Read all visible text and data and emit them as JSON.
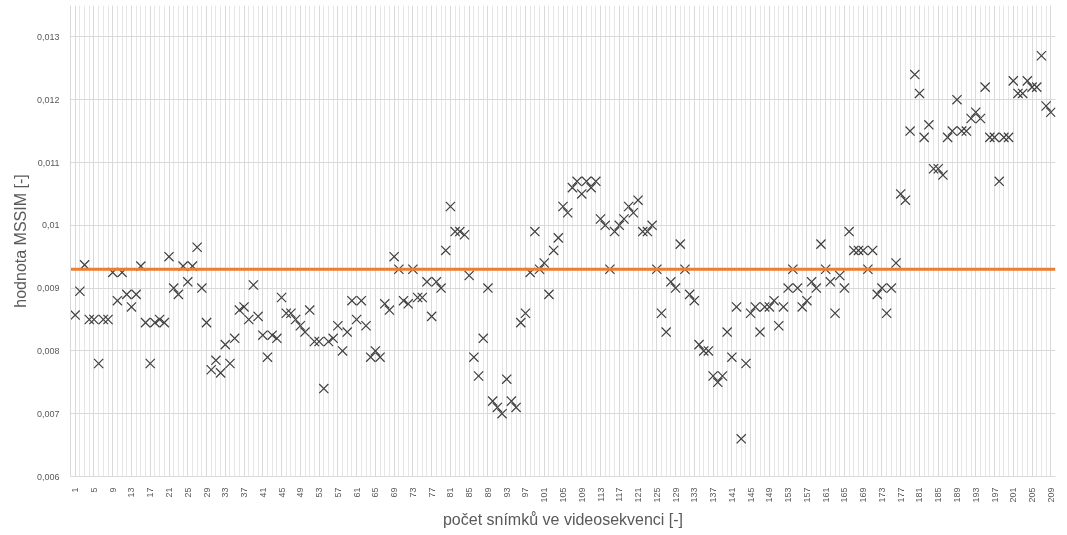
{
  "chart_data": {
    "type": "scatter",
    "xlabel": "počet snímků ve videosekvenci [-]",
    "ylabel": "hodnota MSSIM [-]",
    "x": [
      1,
      2,
      3,
      4,
      5,
      6,
      7,
      8,
      9,
      10,
      11,
      12,
      13,
      14,
      15,
      16,
      17,
      18,
      19,
      20,
      21,
      22,
      23,
      24,
      25,
      26,
      27,
      28,
      29,
      30,
      31,
      32,
      33,
      34,
      35,
      36,
      37,
      38,
      39,
      40,
      41,
      42,
      43,
      44,
      45,
      46,
      47,
      48,
      49,
      50,
      51,
      52,
      53,
      54,
      55,
      56,
      57,
      58,
      59,
      60,
      61,
      62,
      63,
      64,
      65,
      66,
      67,
      68,
      69,
      70,
      71,
      72,
      73,
      74,
      75,
      76,
      77,
      78,
      79,
      80,
      81,
      82,
      83,
      84,
      85,
      86,
      87,
      88,
      89,
      90,
      91,
      92,
      93,
      94,
      95,
      96,
      97,
      98,
      99,
      100,
      101,
      102,
      103,
      104,
      105,
      106,
      107,
      108,
      109,
      110,
      111,
      112,
      113,
      114,
      115,
      116,
      117,
      118,
      119,
      120,
      121,
      122,
      123,
      124,
      125,
      126,
      127,
      128,
      129,
      130,
      131,
      132,
      133,
      134,
      135,
      136,
      137,
      138,
      139,
      140,
      141,
      142,
      143,
      144,
      145,
      146,
      147,
      148,
      149,
      150,
      151,
      152,
      153,
      154,
      155,
      156,
      157,
      158,
      159,
      160,
      161,
      162,
      163,
      164,
      165,
      166,
      167,
      168,
      169,
      170,
      171,
      172,
      173,
      174,
      175,
      176,
      177,
      178,
      179,
      180,
      181,
      182,
      183,
      184,
      185,
      186,
      187,
      188,
      189,
      190,
      191,
      192,
      193,
      194,
      195,
      196,
      197,
      198,
      199,
      200,
      201,
      202,
      203,
      204,
      205,
      206,
      207,
      208,
      209
    ],
    "series": [
      {
        "color": "#404040",
        "values": [
          0.00857,
          0.00895,
          0.00937,
          0.0085,
          0.0085,
          0.0078,
          0.0085,
          0.0085,
          0.00925,
          0.0088,
          0.00925,
          0.0089,
          0.0087,
          0.0089,
          0.00935,
          0.00845,
          0.0078,
          0.00845,
          0.0085,
          0.00845,
          0.0095,
          0.009,
          0.0089,
          0.00935,
          0.0091,
          0.00935,
          0.00965,
          0.009,
          0.00845,
          0.0077,
          0.00785,
          0.00765,
          0.0081,
          0.0078,
          0.0082,
          0.00865,
          0.0087,
          0.0085,
          0.00905,
          0.00855,
          0.00825,
          0.0079,
          0.00825,
          0.0082,
          0.00885,
          0.0086,
          0.0086,
          0.0085,
          0.0084,
          0.0083,
          0.00865,
          0.00815,
          0.00815,
          0.0074,
          0.00815,
          0.0082,
          0.0084,
          0.008,
          0.0083,
          0.0088,
          0.0085,
          0.0088,
          0.0084,
          0.0079,
          0.008,
          0.0079,
          0.00875,
          0.00865,
          0.0095,
          0.0093,
          0.0088,
          0.00875,
          0.0093,
          0.00885,
          0.00885,
          0.0091,
          0.00855,
          0.0091,
          0.009,
          0.0096,
          0.0103,
          0.0099,
          0.0099,
          0.00985,
          0.0092,
          0.0079,
          0.0076,
          0.0082,
          0.009,
          0.0072,
          0.0071,
          0.007,
          0.00755,
          0.0072,
          0.0071,
          0.00845,
          0.0086,
          0.00925,
          0.0099,
          0.0093,
          0.0094,
          0.0089,
          0.0096,
          0.0098,
          0.0103,
          0.0102,
          0.0106,
          0.0107,
          0.0105,
          0.0107,
          0.0106,
          0.0107,
          0.0101,
          0.01,
          0.0093,
          0.0099,
          0.01,
          0.0101,
          0.0103,
          0.0102,
          0.0104,
          0.0099,
          0.0099,
          0.01,
          0.0093,
          0.0086,
          0.0083,
          0.0091,
          0.009,
          0.0097,
          0.0093,
          0.0089,
          0.0088,
          0.0081,
          0.008,
          0.008,
          0.0076,
          0.0075,
          0.0076,
          0.0083,
          0.0079,
          0.0087,
          0.0066,
          0.0078,
          0.0086,
          0.0087,
          0.0083,
          0.0087,
          0.0087,
          0.0088,
          0.0084,
          0.0087,
          0.009,
          0.0093,
          0.009,
          0.0087,
          0.0088,
          0.0091,
          0.009,
          0.0097,
          0.0093,
          0.0091,
          0.0086,
          0.0092,
          0.009,
          0.0099,
          0.0096,
          0.0096,
          0.0096,
          0.0093,
          0.0096,
          0.0089,
          0.009,
          0.0086,
          0.009,
          0.0094,
          0.0105,
          0.0104,
          0.0115,
          0.0124,
          0.0121,
          0.0114,
          0.0116,
          0.0109,
          0.0109,
          0.0108,
          0.0114,
          0.0115,
          0.012,
          0.0115,
          0.0115,
          0.0117,
          0.0118,
          0.0117,
          0.0122,
          0.0114,
          0.0114,
          0.0107,
          0.0114,
          0.0114,
          0.0123,
          0.0121,
          0.0121,
          0.0123,
          0.0122,
          0.0122,
          0.0127,
          0.0119,
          0.0118
        ]
      }
    ],
    "marker": "cross",
    "xlim": [
      0,
      210
    ],
    "xticks": [
      1,
      5,
      9,
      13,
      17,
      21,
      25,
      29,
      33,
      37,
      41,
      45,
      49,
      53,
      57,
      61,
      65,
      69,
      73,
      77,
      81,
      85,
      89,
      93,
      97,
      101,
      105,
      109,
      113,
      117,
      121,
      125,
      129,
      133,
      137,
      141,
      145,
      149,
      153,
      157,
      161,
      165,
      169,
      173,
      177,
      181,
      185,
      189,
      193,
      197,
      201,
      205,
      209
    ],
    "ylim": [
      0.006,
      0.0135
    ],
    "yticks": [
      {
        "value": 0.006,
        "label": "0,006"
      },
      {
        "value": 0.007,
        "label": "0,007"
      },
      {
        "value": 0.008,
        "label": "0,008"
      },
      {
        "value": 0.009,
        "label": "0,009"
      },
      {
        "value": 0.01,
        "label": "0,01"
      },
      {
        "value": 0.011,
        "label": "0,011"
      },
      {
        "value": 0.012,
        "label": "0,012"
      },
      {
        "value": 0.013,
        "label": "0,013"
      }
    ],
    "ref_lines": [
      {
        "axis": "y",
        "value": 0.0093,
        "color": "#ed7d31"
      }
    ],
    "grid": true
  }
}
